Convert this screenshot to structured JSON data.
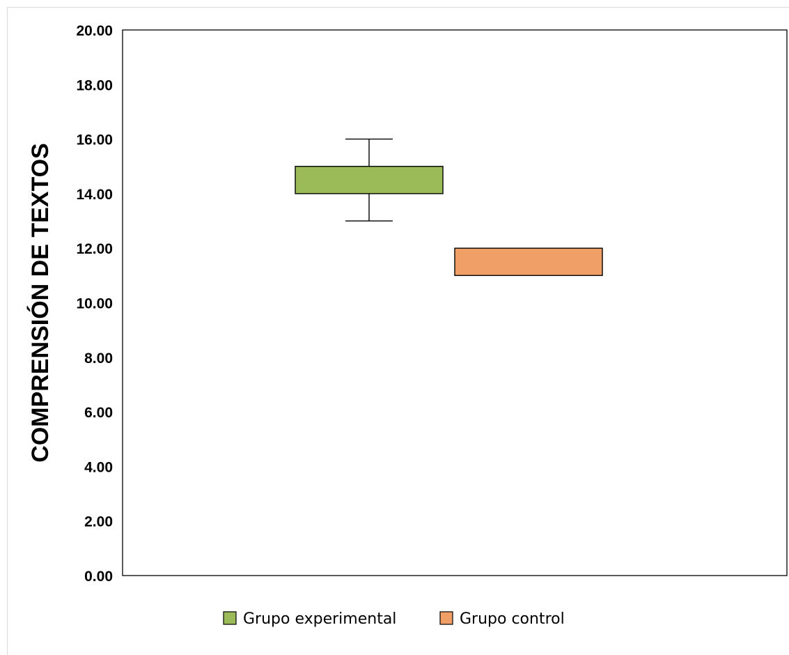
{
  "chart_data": {
    "type": "boxplot",
    "title": "",
    "xlabel": "",
    "ylabel": "COMPRENSIÓN DE TEXTOS",
    "ylim": [
      0,
      20
    ],
    "yticks": [
      "0.00",
      "2.00",
      "4.00",
      "6.00",
      "8.00",
      "10.00",
      "12.00",
      "14.00",
      "16.00",
      "18.00",
      "20.00"
    ],
    "grid": false,
    "legend_position": "bottom",
    "series": [
      {
        "name": "Grupo experimental",
        "color": "#9bbb59",
        "whisker_low": 13,
        "q1": 14,
        "q3": 15,
        "whisker_high": 16
      },
      {
        "name": "Grupo control",
        "color": "#f0a066",
        "whisker_low": 11,
        "q1": 11,
        "q3": 12,
        "whisker_high": 12
      }
    ]
  }
}
